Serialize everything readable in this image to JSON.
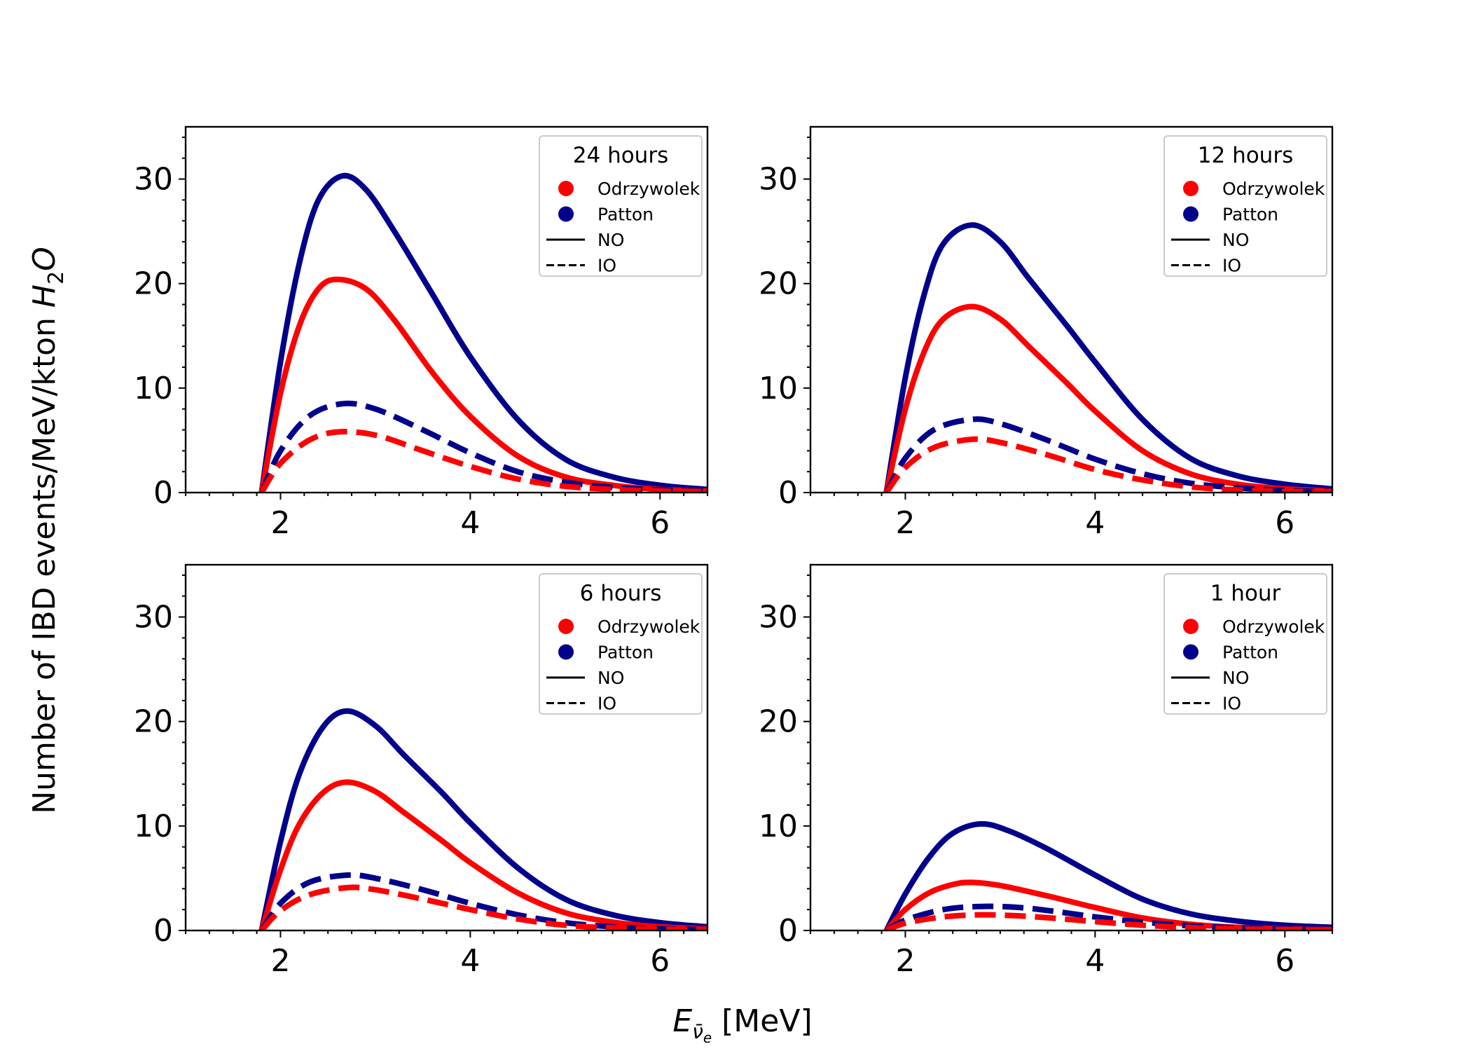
{
  "figure": {
    "ylabel_text": "Number of IBD events/MeV/kton ",
    "ylabel_math_main": "H",
    "ylabel_math_sub": "2",
    "ylabel_math_tail": "O",
    "xlabel_math_main": "E",
    "xlabel_math_sub": "ν̄",
    "xlabel_math_subsub": "e",
    "xlabel_units": " [MeV]"
  },
  "chart_data": [
    {
      "type": "line",
      "legend_title": "24 hours",
      "xlim": [
        1.0,
        6.5
      ],
      "ylim": [
        0,
        35
      ],
      "xticks": [
        2,
        4,
        6
      ],
      "yticks": [
        0,
        10,
        20,
        30
      ],
      "xtick_labels": [
        "2",
        "4",
        "6"
      ],
      "ytick_labels": [
        "0",
        "10",
        "20",
        "30"
      ],
      "legend": [
        {
          "label": "Odrzywolek",
          "marker": "circle",
          "color": "#ff0000"
        },
        {
          "label": "Patton",
          "marker": "circle",
          "color": "#00008b"
        },
        {
          "label": "NO",
          "marker": "solid-line",
          "color": "#000000"
        },
        {
          "label": "IO",
          "marker": "dashed-line",
          "color": "#000000"
        }
      ],
      "series": [
        {
          "name": "Patton NO",
          "color": "#00008b",
          "dash": "solid",
          "x": [
            1.8,
            2.0,
            2.2,
            2.4,
            2.65,
            2.9,
            3.2,
            3.6,
            4.0,
            4.5,
            5.0,
            5.5,
            6.0,
            6.5
          ],
          "y": [
            0,
            12.5,
            22.0,
            28.0,
            30.3,
            29.0,
            25.0,
            19.0,
            13.0,
            7.0,
            3.2,
            1.5,
            0.7,
            0.3
          ]
        },
        {
          "name": "Odrzywolek NO",
          "color": "#ff0000",
          "dash": "solid",
          "x": [
            1.8,
            2.0,
            2.2,
            2.4,
            2.6,
            2.9,
            3.2,
            3.6,
            4.0,
            4.5,
            5.0,
            5.5,
            6.0,
            6.5
          ],
          "y": [
            0,
            9.5,
            16.0,
            19.5,
            20.4,
            19.5,
            16.5,
            11.5,
            7.3,
            3.5,
            1.5,
            0.7,
            0.3,
            0.15
          ]
        },
        {
          "name": "Patton IO",
          "color": "#00008b",
          "dash": "dashed",
          "x": [
            1.8,
            2.0,
            2.3,
            2.65,
            3.0,
            3.5,
            4.0,
            4.5,
            5.0,
            5.5,
            6.0,
            6.5
          ],
          "y": [
            0,
            4.0,
            7.3,
            8.5,
            8.0,
            6.0,
            3.8,
            2.0,
            1.0,
            0.5,
            0.25,
            0.12
          ]
        },
        {
          "name": "Odrzywolek IO",
          "color": "#ff0000",
          "dash": "dashed",
          "x": [
            1.8,
            2.0,
            2.3,
            2.6,
            3.0,
            3.5,
            4.0,
            4.5,
            5.0,
            5.5,
            6.0,
            6.5
          ],
          "y": [
            0,
            2.8,
            5.0,
            5.8,
            5.5,
            4.0,
            2.5,
            1.3,
            0.6,
            0.3,
            0.15,
            0.08
          ]
        }
      ]
    },
    {
      "type": "line",
      "legend_title": "12 hours",
      "xlim": [
        1.0,
        6.5
      ],
      "ylim": [
        0,
        35
      ],
      "xticks": [
        2,
        4,
        6
      ],
      "yticks": [
        0,
        10,
        20,
        30
      ],
      "xtick_labels": [
        "2",
        "4",
        "6"
      ],
      "ytick_labels": [
        "0",
        "10",
        "20",
        "30"
      ],
      "legend": [
        {
          "label": "Odrzywolek",
          "marker": "circle",
          "color": "#ff0000"
        },
        {
          "label": "Patton",
          "marker": "circle",
          "color": "#00008b"
        },
        {
          "label": "NO",
          "marker": "solid-line",
          "color": "#000000"
        },
        {
          "label": "IO",
          "marker": "dashed-line",
          "color": "#000000"
        }
      ],
      "series": [
        {
          "name": "Patton NO",
          "color": "#00008b",
          "dash": "solid",
          "x": [
            1.8,
            2.0,
            2.2,
            2.4,
            2.7,
            3.0,
            3.3,
            3.7,
            4.0,
            4.5,
            5.0,
            5.5,
            6.0,
            6.5
          ],
          "y": [
            0,
            11.0,
            19.0,
            23.8,
            25.6,
            24.0,
            20.5,
            16.0,
            12.5,
            7.0,
            3.3,
            1.6,
            0.8,
            0.35
          ]
        },
        {
          "name": "Odrzywolek NO",
          "color": "#ff0000",
          "dash": "solid",
          "x": [
            1.8,
            2.0,
            2.2,
            2.4,
            2.7,
            3.0,
            3.3,
            3.7,
            4.0,
            4.5,
            5.0,
            5.5,
            6.0,
            6.5
          ],
          "y": [
            0,
            8.0,
            13.5,
            16.6,
            17.8,
            16.6,
            14.0,
            10.5,
            7.8,
            4.0,
            1.8,
            0.8,
            0.35,
            0.15
          ]
        },
        {
          "name": "Patton IO",
          "color": "#00008b",
          "dash": "dashed",
          "x": [
            1.8,
            2.0,
            2.3,
            2.7,
            3.0,
            3.5,
            4.0,
            4.5,
            5.0,
            5.5,
            6.0,
            6.5
          ],
          "y": [
            0,
            3.3,
            6.0,
            7.0,
            6.6,
            5.0,
            3.2,
            1.8,
            0.9,
            0.45,
            0.2,
            0.1
          ]
        },
        {
          "name": "Odrzywolek IO",
          "color": "#ff0000",
          "dash": "dashed",
          "x": [
            1.8,
            2.0,
            2.3,
            2.7,
            3.0,
            3.5,
            4.0,
            4.5,
            5.0,
            5.5,
            6.0,
            6.5
          ],
          "y": [
            0,
            2.4,
            4.3,
            5.1,
            4.8,
            3.6,
            2.2,
            1.2,
            0.55,
            0.25,
            0.12,
            0.06
          ]
        }
      ]
    },
    {
      "type": "line",
      "legend_title": "6 hours",
      "xlim": [
        1.0,
        6.5
      ],
      "ylim": [
        0,
        35
      ],
      "xticks": [
        2,
        4,
        6
      ],
      "yticks": [
        0,
        10,
        20,
        30
      ],
      "xtick_labels": [
        "2",
        "4",
        "6"
      ],
      "ytick_labels": [
        "0",
        "10",
        "20",
        "30"
      ],
      "legend": [
        {
          "label": "Odrzywolek",
          "marker": "circle",
          "color": "#ff0000"
        },
        {
          "label": "Patton",
          "marker": "circle",
          "color": "#00008b"
        },
        {
          "label": "NO",
          "marker": "solid-line",
          "color": "#000000"
        },
        {
          "label": "IO",
          "marker": "dashed-line",
          "color": "#000000"
        }
      ],
      "series": [
        {
          "name": "Patton NO",
          "color": "#00008b",
          "dash": "solid",
          "x": [
            1.8,
            2.0,
            2.2,
            2.45,
            2.7,
            3.0,
            3.3,
            3.7,
            4.0,
            4.5,
            5.0,
            5.5,
            6.0,
            6.5
          ],
          "y": [
            0,
            8.5,
            15.0,
            19.5,
            21.0,
            19.6,
            16.8,
            13.2,
            10.3,
            6.0,
            3.0,
            1.5,
            0.75,
            0.35
          ]
        },
        {
          "name": "Odrzywolek NO",
          "color": "#ff0000",
          "dash": "solid",
          "x": [
            1.8,
            2.0,
            2.2,
            2.45,
            2.7,
            3.0,
            3.3,
            3.7,
            4.0,
            4.5,
            5.0,
            5.5,
            6.0,
            6.5
          ],
          "y": [
            0,
            5.8,
            10.2,
            13.2,
            14.2,
            13.3,
            11.3,
            8.6,
            6.5,
            3.6,
            1.7,
            0.8,
            0.35,
            0.15
          ]
        },
        {
          "name": "Patton IO",
          "color": "#00008b",
          "dash": "dashed",
          "x": [
            1.8,
            2.0,
            2.3,
            2.7,
            3.0,
            3.5,
            4.0,
            4.5,
            5.0,
            5.5,
            6.0,
            6.5
          ],
          "y": [
            0,
            2.6,
            4.6,
            5.3,
            5.0,
            3.9,
            2.6,
            1.5,
            0.75,
            0.35,
            0.17,
            0.08
          ]
        },
        {
          "name": "Odrzywolek IO",
          "color": "#ff0000",
          "dash": "dashed",
          "x": [
            1.8,
            2.0,
            2.3,
            2.7,
            3.0,
            3.5,
            4.0,
            4.5,
            5.0,
            5.5,
            6.0,
            6.5
          ],
          "y": [
            0,
            1.9,
            3.4,
            4.1,
            3.9,
            3.0,
            2.0,
            1.1,
            0.5,
            0.25,
            0.12,
            0.06
          ]
        }
      ]
    },
    {
      "type": "line",
      "legend_title": "1 hour",
      "xlim": [
        1.0,
        6.5
      ],
      "ylim": [
        0,
        35
      ],
      "xticks": [
        2,
        4,
        6
      ],
      "yticks": [
        0,
        10,
        20,
        30
      ],
      "xtick_labels": [
        "2",
        "4",
        "6"
      ],
      "ytick_labels": [
        "0",
        "10",
        "20",
        "30"
      ],
      "legend": [
        {
          "label": "Odrzywolek",
          "marker": "circle",
          "color": "#ff0000"
        },
        {
          "label": "Patton",
          "marker": "circle",
          "color": "#00008b"
        },
        {
          "label": "NO",
          "marker": "solid-line",
          "color": "#000000"
        },
        {
          "label": "IO",
          "marker": "dashed-line",
          "color": "#000000"
        }
      ],
      "series": [
        {
          "name": "Patton NO",
          "color": "#00008b",
          "dash": "solid",
          "x": [
            1.8,
            2.0,
            2.25,
            2.5,
            2.8,
            3.1,
            3.5,
            4.0,
            4.5,
            5.0,
            5.5,
            6.0,
            6.5
          ],
          "y": [
            0,
            3.5,
            7.0,
            9.3,
            10.2,
            9.5,
            7.8,
            5.3,
            3.0,
            1.6,
            0.9,
            0.5,
            0.3
          ]
        },
        {
          "name": "Odrzywolek NO",
          "color": "#ff0000",
          "dash": "solid",
          "x": [
            1.8,
            2.0,
            2.25,
            2.5,
            2.7,
            3.0,
            3.5,
            4.0,
            4.5,
            5.0,
            5.5,
            6.0,
            6.5
          ],
          "y": [
            0,
            2.0,
            3.6,
            4.4,
            4.6,
            4.3,
            3.3,
            2.2,
            1.2,
            0.6,
            0.3,
            0.15,
            0.08
          ]
        },
        {
          "name": "Patton IO",
          "color": "#00008b",
          "dash": "dashed",
          "x": [
            1.8,
            2.0,
            2.4,
            2.8,
            3.2,
            3.6,
            4.0,
            4.5,
            5.0,
            5.5,
            6.0,
            6.5
          ],
          "y": [
            0,
            1.0,
            2.0,
            2.3,
            2.2,
            1.8,
            1.3,
            0.8,
            0.45,
            0.25,
            0.12,
            0.06
          ]
        },
        {
          "name": "Odrzywolek IO",
          "color": "#ff0000",
          "dash": "dashed",
          "x": [
            1.8,
            2.0,
            2.4,
            2.8,
            3.2,
            3.6,
            4.0,
            4.5,
            5.0,
            5.5,
            6.0,
            6.5
          ],
          "y": [
            0,
            0.7,
            1.3,
            1.5,
            1.4,
            1.15,
            0.85,
            0.5,
            0.28,
            0.15,
            0.08,
            0.04
          ]
        }
      ]
    }
  ]
}
